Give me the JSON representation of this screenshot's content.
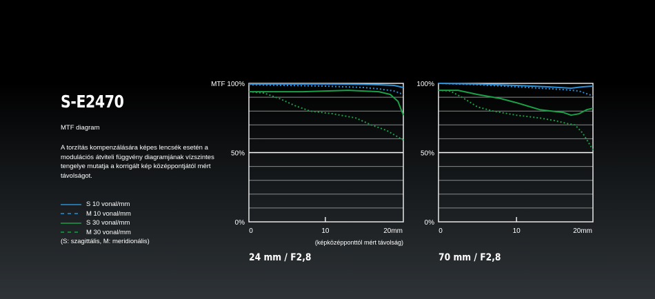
{
  "model": "S-E2470",
  "subtitle": "MTF diagram",
  "description": "A torzítás kompenzálására képes lencsék esetén a modulációs átviteli függvény diagramjának vízszintes tengelye mutatja a korrigált kép középpontjától mért távolságot.",
  "legend": {
    "items": [
      {
        "label": "S  10 vonal/mm",
        "color": "#2a8fd6",
        "style": "solid"
      },
      {
        "label": "M 10 vonal/mm",
        "color": "#2a8fd6",
        "style": "dashed"
      },
      {
        "label": "S  30 vonal/mm",
        "color": "#1aa046",
        "style": "solid"
      },
      {
        "label": "M 30 vonal/mm",
        "color": "#1aa046",
        "style": "dashed"
      }
    ],
    "note": "(S: szagittális, M: meridionális)"
  },
  "chart_data": [
    {
      "type": "line",
      "title": "24 mm / F2,8",
      "ylabel": "MTF",
      "xlabel": "(képközépponttól mért távolság)",
      "ytick_labels": [
        "MTF 100%",
        "50%",
        "0%"
      ],
      "xtick_labels": [
        "0",
        "10",
        "20mm"
      ],
      "xlim": [
        0,
        20.2
      ],
      "ylim": [
        0,
        100
      ],
      "series": [
        {
          "name": "S 10 vonal/mm",
          "x": [
            0,
            5,
            10,
            15,
            17,
            19,
            20.2
          ],
          "y": [
            99.5,
            99.5,
            99.5,
            99.3,
            99,
            98.5,
            97
          ]
        },
        {
          "name": "M 10 vonal/mm",
          "x": [
            0,
            5,
            10,
            15,
            17,
            19,
            20.2
          ],
          "y": [
            99,
            98.5,
            98,
            97,
            96,
            94.5,
            92
          ]
        },
        {
          "name": "S 30 vonal/mm",
          "x": [
            0,
            3,
            7,
            10,
            13,
            17,
            18.5,
            19.5,
            20.2
          ],
          "y": [
            94,
            94,
            94,
            94.5,
            95,
            94,
            92,
            87,
            77
          ]
        },
        {
          "name": "M 30 vonal/mm",
          "x": [
            0,
            2,
            4,
            6,
            8,
            11,
            14,
            16,
            18,
            20.2
          ],
          "y": [
            94,
            93,
            89,
            84,
            80,
            78,
            75,
            70,
            66,
            59
          ]
        }
      ]
    },
    {
      "type": "line",
      "title": "70 mm / F2,8",
      "ylabel": "MTF",
      "ytick_labels": [
        "100%",
        "50%",
        "0%"
      ],
      "xtick_labels": [
        "0",
        "10",
        "20mm"
      ],
      "xlim": [
        0,
        19.8
      ],
      "ylim": [
        0,
        100
      ],
      "series": [
        {
          "name": "S 10 vonal/mm",
          "x": [
            0,
            5,
            10,
            14,
            17,
            18.5,
            19.8
          ],
          "y": [
            100,
            99.5,
            98.5,
            97.5,
            96.5,
            97.5,
            98
          ]
        },
        {
          "name": "M 10 vonal/mm",
          "x": [
            0,
            5,
            10,
            16,
            18,
            19.8
          ],
          "y": [
            100,
            99,
            97.5,
            95.5,
            94.5,
            91
          ]
        },
        {
          "name": "S 30 vonal/mm",
          "x": [
            0,
            2.5,
            5,
            8,
            10,
            13,
            14.5,
            16,
            17,
            18,
            19,
            19.8
          ],
          "y": [
            95,
            95,
            92,
            89,
            86,
            81,
            80,
            79,
            77,
            78,
            81,
            82
          ]
        },
        {
          "name": "M 30 vonal/mm",
          "x": [
            0,
            1.5,
            3,
            5,
            7,
            10,
            13,
            15,
            16.5,
            17.5,
            18.5,
            19.8
          ],
          "y": [
            95,
            94.5,
            90,
            83,
            80,
            77,
            75,
            73,
            71,
            70,
            64,
            52
          ]
        }
      ]
    }
  ],
  "colors": {
    "s10": "#2a8fd6",
    "m10": "#2a8fd6",
    "s30": "#1aa046",
    "m30": "#1aa046",
    "grid": "#8a8a8a",
    "axis": "#e8e8e8"
  }
}
